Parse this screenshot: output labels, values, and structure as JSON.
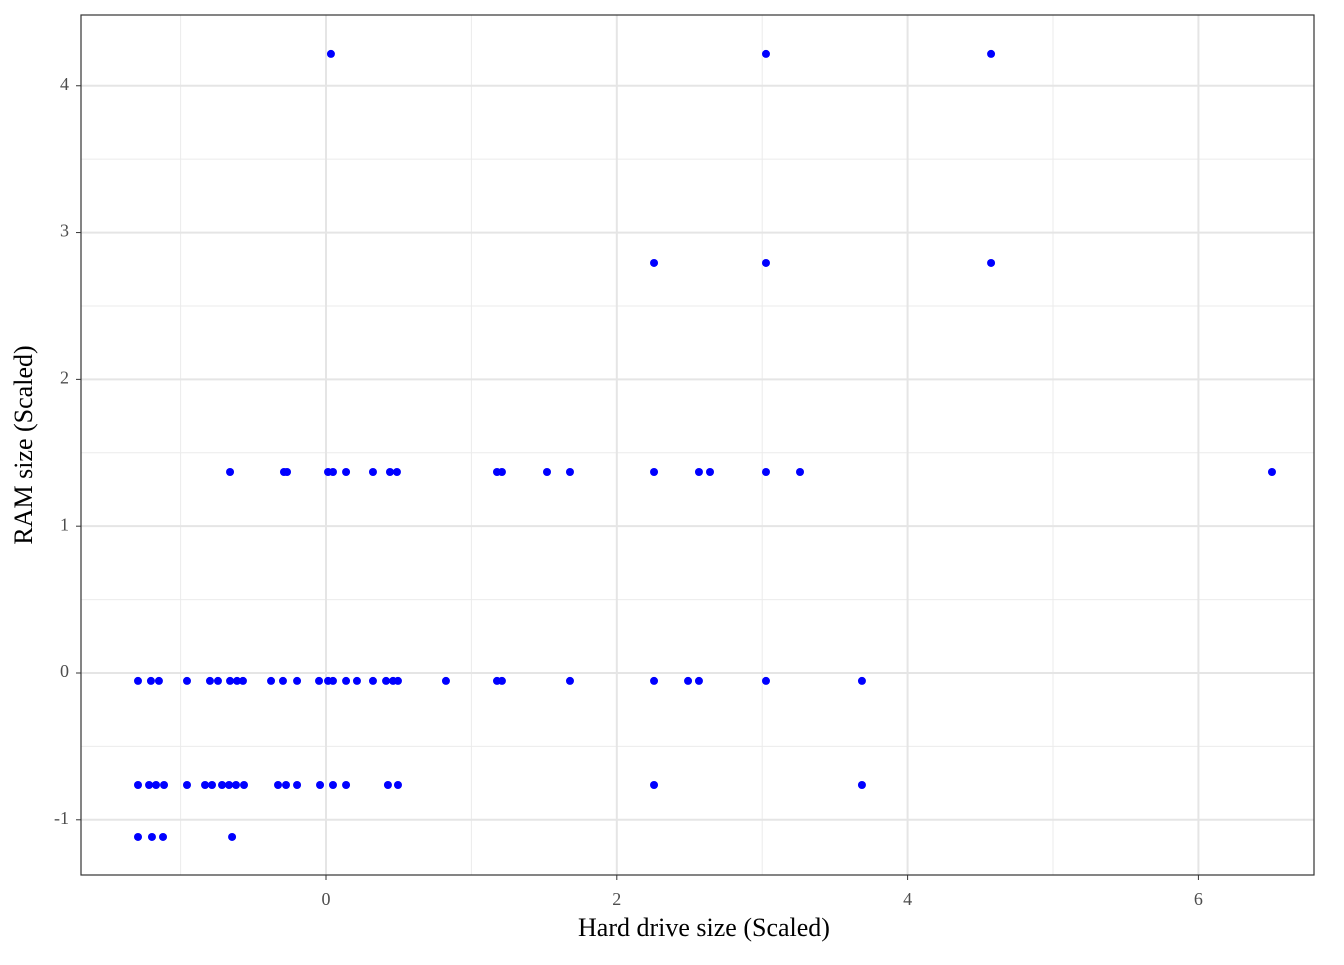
{
  "chart_data": {
    "type": "scatter",
    "x_label": "Hard drive size (Scaled)",
    "y_label": "RAM size (Scaled)",
    "x": [
      0.034,
      3.026,
      4.574,
      2.256,
      3.026,
      4.574,
      -0.66,
      -0.289,
      -0.268,
      0.014,
      0.048,
      0.138,
      0.323,
      0.44,
      0.488,
      1.176,
      1.21,
      1.52,
      1.678,
      2.256,
      2.565,
      2.641,
      3.026,
      3.26,
      6.506,
      -1.293,
      -1.204,
      -1.149,
      -0.956,
      -0.798,
      -0.743,
      -0.66,
      -0.612,
      -0.571,
      -0.378,
      -0.296,
      -0.199,
      -0.048,
      0.014,
      0.048,
      0.138,
      0.213,
      0.323,
      0.413,
      0.461,
      0.495,
      0.825,
      1.176,
      1.21,
      1.678,
      2.256,
      2.49,
      2.565,
      3.026,
      3.686,
      -1.293,
      -1.217,
      -1.169,
      -1.114,
      -0.956,
      -0.832,
      -0.784,
      -0.715,
      -0.667,
      -0.619,
      -0.564,
      -0.33,
      -0.275,
      -0.199,
      -0.041,
      0.048,
      0.138,
      0.426,
      0.495,
      2.256,
      3.686,
      -1.293,
      -1.197,
      -1.121,
      -0.646
    ],
    "values": [
      4.217,
      4.217,
      4.217,
      2.793,
      2.793,
      2.793,
      1.369,
      1.369,
      1.369,
      1.369,
      1.369,
      1.369,
      1.369,
      1.369,
      1.369,
      1.369,
      1.369,
      1.369,
      1.369,
      1.369,
      1.369,
      1.369,
      1.369,
      1.369,
      1.369,
      -0.054,
      -0.054,
      -0.054,
      -0.054,
      -0.054,
      -0.054,
      -0.054,
      -0.054,
      -0.054,
      -0.054,
      -0.054,
      -0.054,
      -0.054,
      -0.054,
      -0.054,
      -0.054,
      -0.054,
      -0.054,
      -0.054,
      -0.054,
      -0.054,
      -0.054,
      -0.054,
      -0.054,
      -0.054,
      -0.054,
      -0.054,
      -0.054,
      -0.054,
      -0.054,
      -0.763,
      -0.763,
      -0.763,
      -0.763,
      -0.763,
      -0.763,
      -0.763,
      -0.763,
      -0.763,
      -0.763,
      -0.763,
      -0.763,
      -0.763,
      -0.763,
      -0.763,
      -0.763,
      -0.763,
      -0.763,
      -0.763,
      -0.763,
      -0.763,
      -1.117,
      -1.117,
      -1.117,
      -1.117
    ],
    "color": "#0000ff",
    "xlim": [
      -1.685,
      6.795
    ],
    "ylim": [
      -1.376,
      4.482
    ],
    "xticks": [
      0,
      2,
      4,
      6
    ],
    "yticks": [
      -1,
      0,
      1,
      2,
      3,
      4
    ],
    "grid": true,
    "minor_grid": true
  }
}
